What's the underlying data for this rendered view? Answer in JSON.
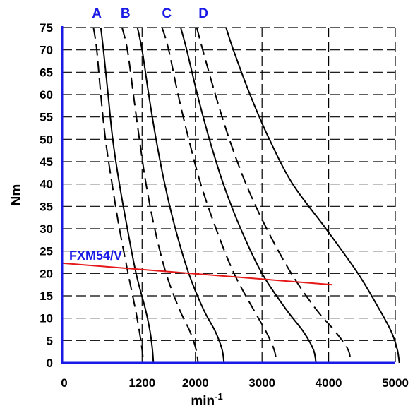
{
  "chart_data": {
    "type": "line",
    "ylabel": "Nm",
    "xlabel": {
      "base": "min",
      "exponent": "-1"
    },
    "xlim": [
      0,
      5000
    ],
    "ylim": [
      0,
      75
    ],
    "grid": true,
    "x_ticks": [
      {
        "value": 0,
        "label": "0"
      },
      {
        "value": 1200,
        "label": "1200"
      },
      {
        "value": 2000,
        "label": "2000"
      },
      {
        "value": 3000,
        "label": "3000"
      },
      {
        "value": 4000,
        "label": "4000"
      },
      {
        "value": 5000,
        "label": "5000"
      }
    ],
    "y_ticks": [
      0,
      5,
      10,
      15,
      20,
      25,
      30,
      35,
      40,
      45,
      50,
      55,
      60,
      65,
      70,
      75
    ],
    "curve_labels": [
      {
        "label": "A",
        "x": 520
      },
      {
        "label": "B",
        "x": 950
      },
      {
        "label": "C",
        "x": 1570
      },
      {
        "label": "D",
        "x": 2120
      }
    ],
    "series": [
      {
        "label": "A",
        "style": "dashed",
        "color": "#000000",
        "points": [
          [
            470,
            75
          ],
          [
            520,
            70
          ],
          [
            580,
            60
          ],
          [
            650,
            50
          ],
          [
            750,
            40
          ],
          [
            860,
            30
          ],
          [
            990,
            20
          ],
          [
            1100,
            12
          ],
          [
            1160,
            7
          ],
          [
            1200,
            3
          ],
          [
            1220,
            0
          ]
        ]
      },
      {
        "label": "A",
        "style": "solid",
        "color": "#000000",
        "points": [
          [
            580,
            75
          ],
          [
            620,
            70
          ],
          [
            690,
            60
          ],
          [
            760,
            50
          ],
          [
            860,
            40
          ],
          [
            980,
            30
          ],
          [
            1110,
            20
          ],
          [
            1250,
            12
          ],
          [
            1320,
            7
          ],
          [
            1355,
            3
          ],
          [
            1370,
            0
          ]
        ]
      },
      {
        "label": "B",
        "style": "dashed",
        "color": "#000000",
        "points": [
          [
            900,
            75
          ],
          [
            980,
            70
          ],
          [
            1070,
            60
          ],
          [
            1160,
            50
          ],
          [
            1260,
            40
          ],
          [
            1390,
            30
          ],
          [
            1560,
            20
          ],
          [
            1760,
            12
          ],
          [
            1920,
            7
          ],
          [
            2010,
            3
          ],
          [
            2040,
            0
          ]
        ]
      },
      {
        "label": "B",
        "style": "solid",
        "color": "#000000",
        "points": [
          [
            1130,
            75
          ],
          [
            1200,
            70
          ],
          [
            1300,
            60
          ],
          [
            1410,
            50
          ],
          [
            1540,
            40
          ],
          [
            1700,
            30
          ],
          [
            1900,
            20
          ],
          [
            2120,
            12
          ],
          [
            2300,
            7
          ],
          [
            2400,
            3
          ],
          [
            2430,
            0
          ]
        ]
      },
      {
        "label": "C",
        "style": "dashed",
        "color": "#000000",
        "points": [
          [
            1500,
            75
          ],
          [
            1600,
            70
          ],
          [
            1740,
            60
          ],
          [
            1900,
            50
          ],
          [
            2080,
            40
          ],
          [
            2310,
            30
          ],
          [
            2580,
            20
          ],
          [
            2870,
            12
          ],
          [
            3060,
            7
          ],
          [
            3180,
            3
          ],
          [
            3220,
            0
          ]
        ]
      },
      {
        "label": "C",
        "style": "solid",
        "color": "#000000",
        "points": [
          [
            1780,
            75
          ],
          [
            1870,
            70
          ],
          [
            2030,
            60
          ],
          [
            2210,
            50
          ],
          [
            2420,
            40
          ],
          [
            2680,
            30
          ],
          [
            3000,
            20
          ],
          [
            3360,
            12
          ],
          [
            3620,
            7
          ],
          [
            3770,
            3
          ],
          [
            3810,
            0
          ]
        ]
      },
      {
        "label": "D",
        "style": "dashed",
        "color": "#000000",
        "points": [
          [
            2020,
            75
          ],
          [
            2110,
            70
          ],
          [
            2300,
            60
          ],
          [
            2510,
            50
          ],
          [
            2760,
            40
          ],
          [
            3070,
            30
          ],
          [
            3440,
            20
          ],
          [
            3810,
            12
          ],
          [
            4100,
            7
          ],
          [
            4290,
            3
          ],
          [
            4330,
            0
          ]
        ]
      },
      {
        "label": "D",
        "style": "solid",
        "color": "#000000",
        "points": [
          [
            2460,
            75
          ],
          [
            2570,
            70
          ],
          [
            2820,
            60
          ],
          [
            3110,
            50
          ],
          [
            3460,
            40
          ],
          [
            3960,
            30
          ],
          [
            4440,
            20
          ],
          [
            4760,
            12
          ],
          [
            4940,
            7
          ],
          [
            5030,
            3
          ],
          [
            5060,
            0
          ]
        ]
      },
      {
        "name": "FXM54/V",
        "style": "solid",
        "color": "#e61919",
        "points": [
          [
            0,
            22.3
          ],
          [
            4050,
            17.5
          ]
        ]
      }
    ]
  }
}
